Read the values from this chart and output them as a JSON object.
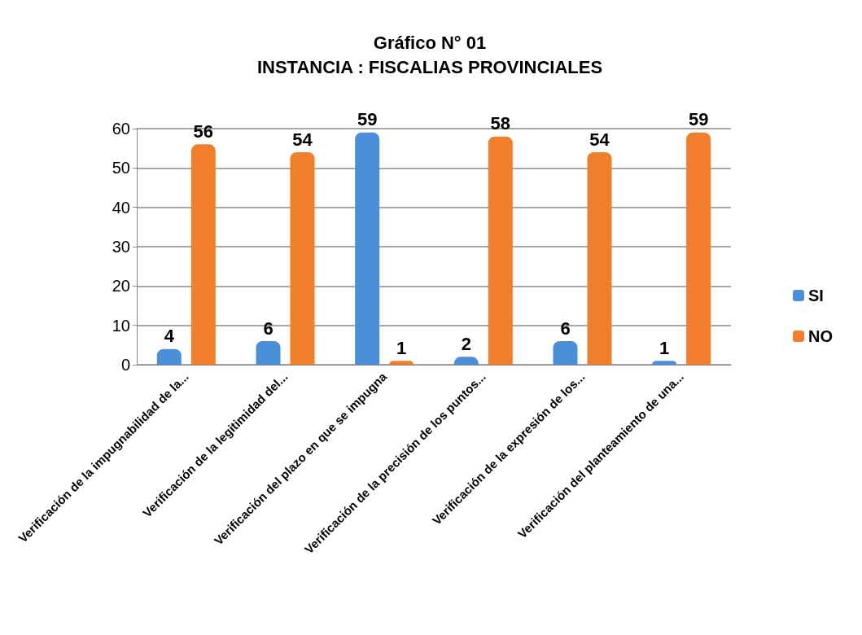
{
  "chart_data": {
    "type": "bar",
    "title": "Gráfico N° 01",
    "subtitle": "INSTANCIA : FISCALIAS PROVINCIALES",
    "categories": [
      "Verificación de la impugnabilidad de la...",
      "Verificación de la legitimidad del...",
      "Verificación del plazo en que se impugna",
      "Verificación de la precisión de los puntos...",
      "Verificación de la expresión de los...",
      "Verificación del planteamiento de una..."
    ],
    "series": [
      {
        "name": "SI",
        "color": "#4a8fd8",
        "values": [
          4,
          6,
          59,
          2,
          6,
          1
        ]
      },
      {
        "name": "NO",
        "color": "#f07e2a",
        "values": [
          56,
          54,
          1,
          58,
          54,
          59
        ]
      }
    ],
    "ylim": [
      0,
      60
    ],
    "yticks": [
      0,
      10,
      20,
      30,
      40,
      50,
      60
    ],
    "grid": "y",
    "legend": "right",
    "data_labels": true
  }
}
